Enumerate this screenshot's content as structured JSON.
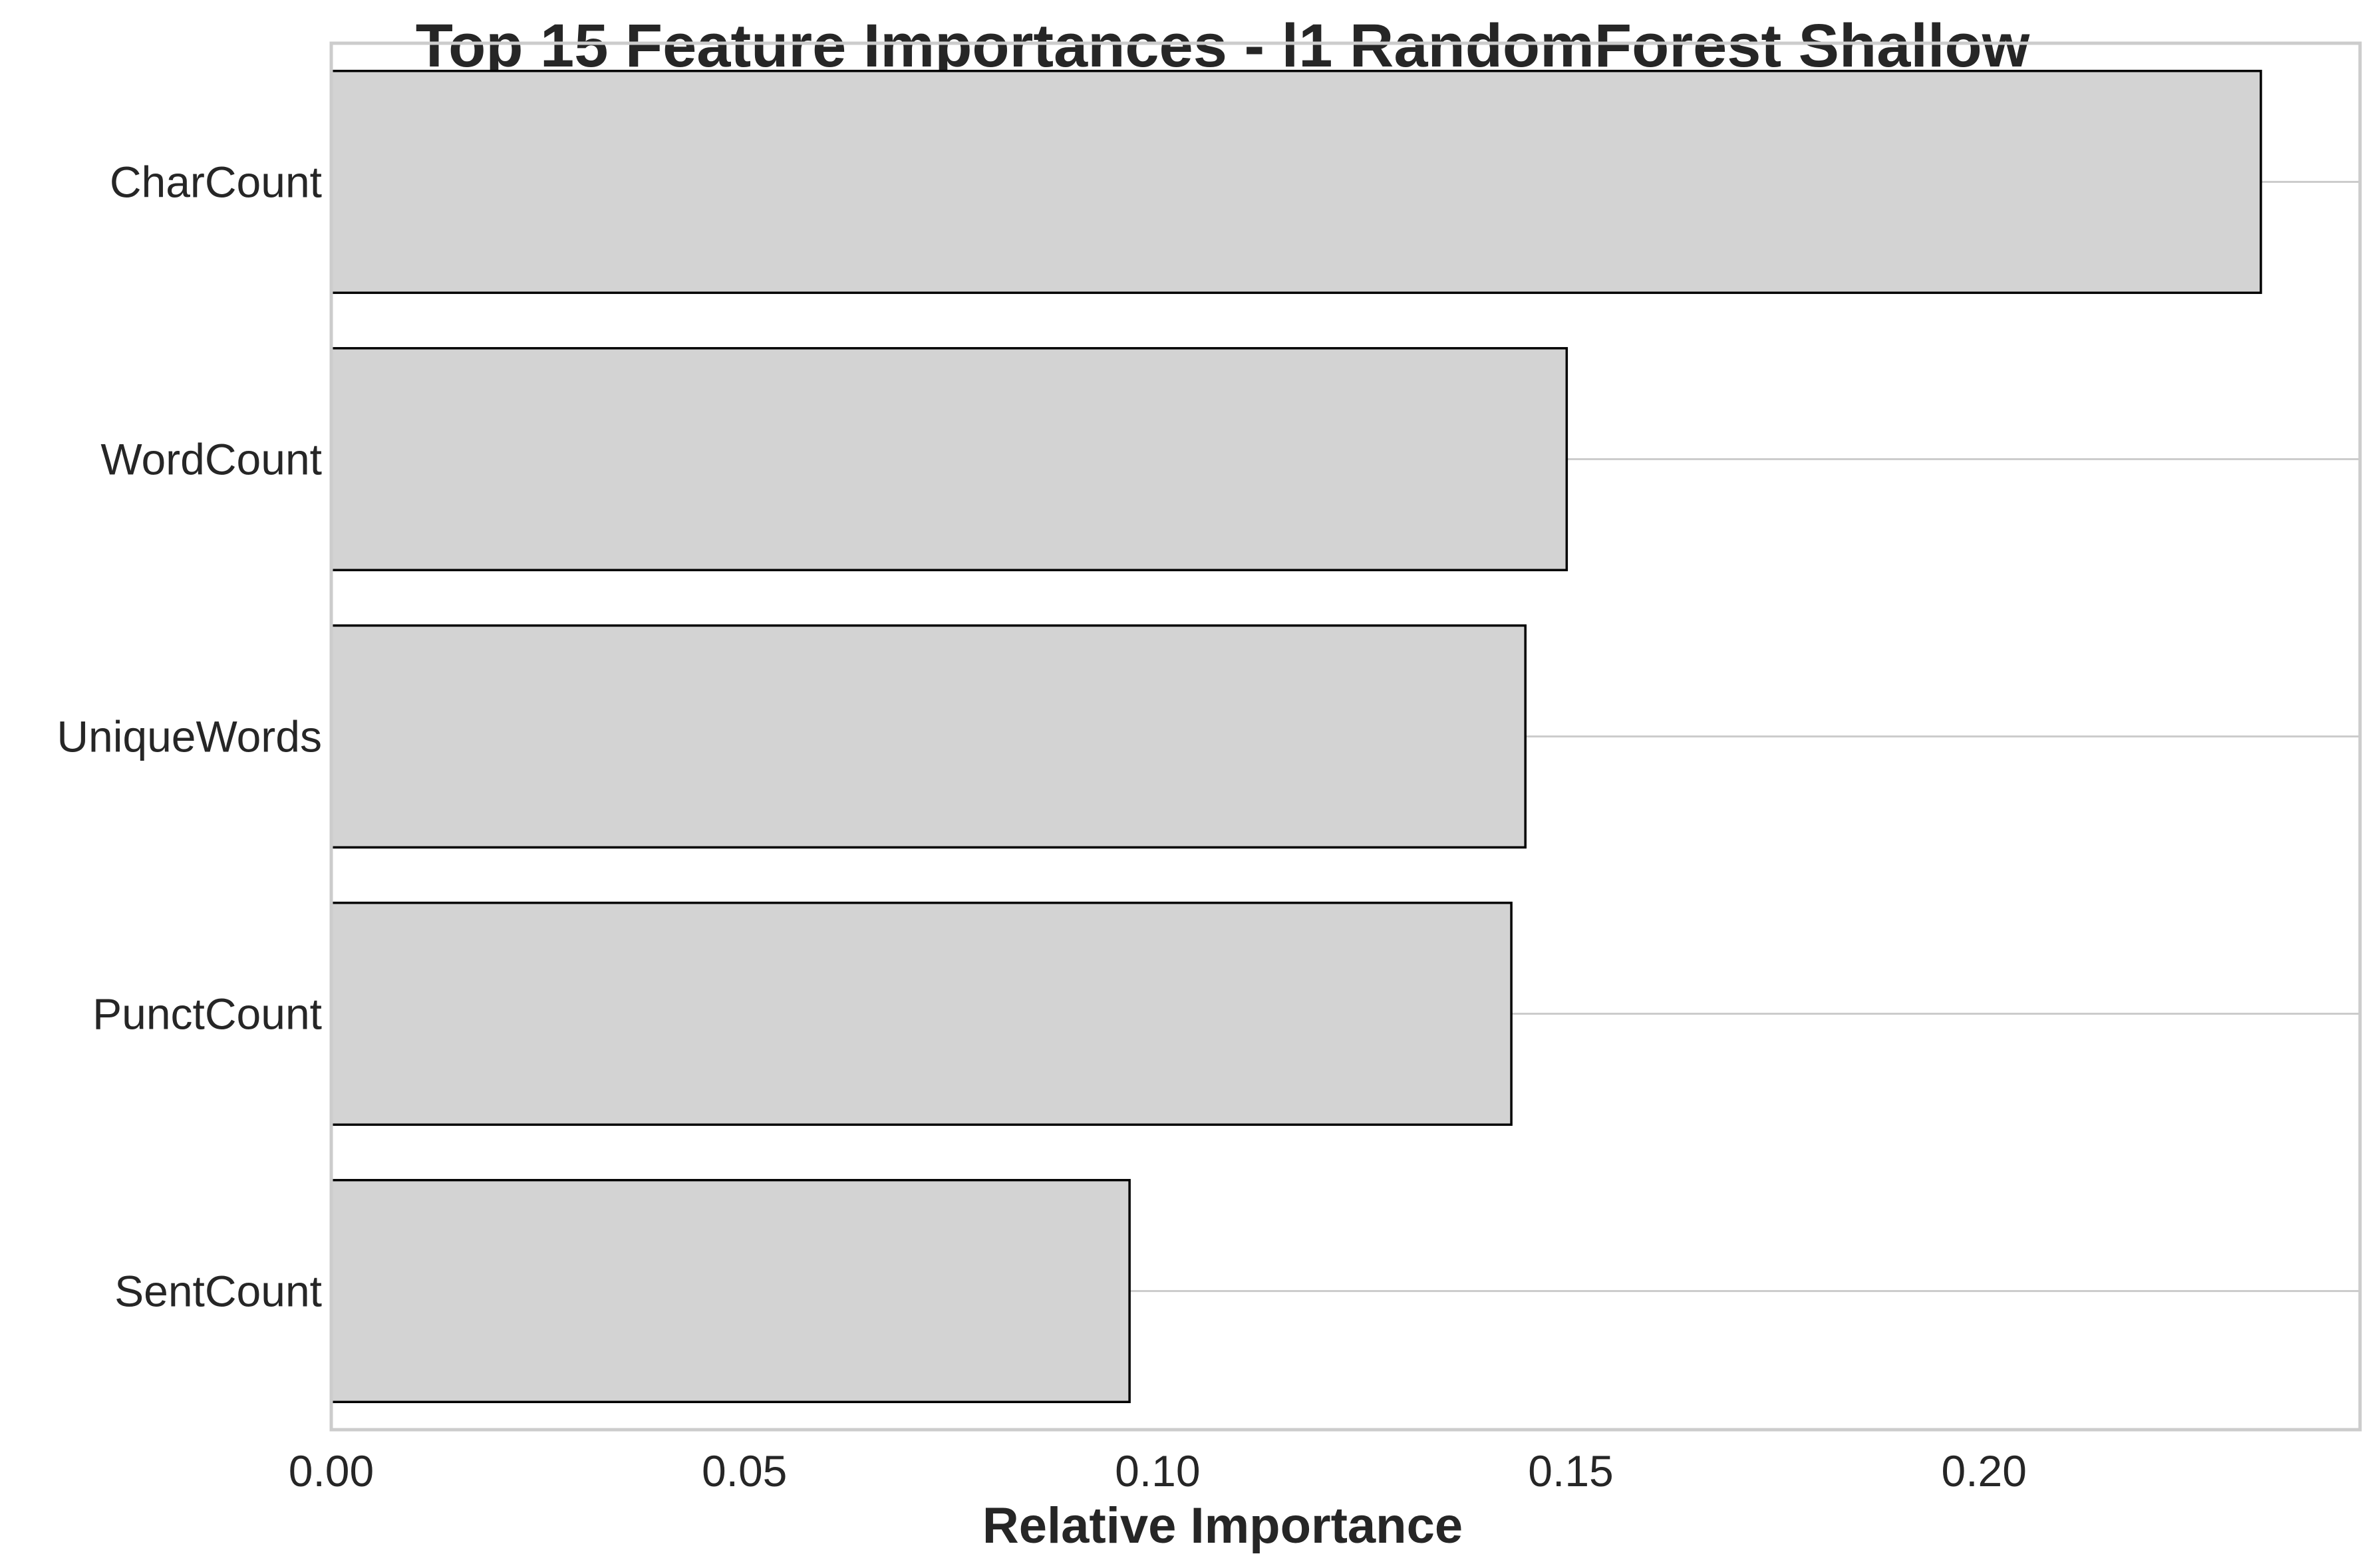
{
  "chart_data": {
    "type": "bar",
    "orientation": "horizontal",
    "title": "Top 15 Feature Importances - l1 RandomForest Shallow",
    "xlabel": "Relative Importance",
    "ylabel": "",
    "categories": [
      "CharCount",
      "WordCount",
      "UniqueWords",
      "PunctCount",
      "SentCount"
    ],
    "values": [
      0.2335,
      0.1495,
      0.1445,
      0.1428,
      0.0966
    ],
    "xlim": [
      0,
      0.2455
    ],
    "xticks": [
      0.0,
      0.05,
      0.1,
      0.15,
      0.2
    ],
    "xtick_labels": [
      "0.00",
      "0.05",
      "0.10",
      "0.15",
      "0.20"
    ],
    "grid": "on",
    "legend": "none",
    "bar_color": "#d3d3d3",
    "bar_edge_color": "#000000",
    "grid_color": "#cccccc",
    "text_color": "#262626"
  }
}
